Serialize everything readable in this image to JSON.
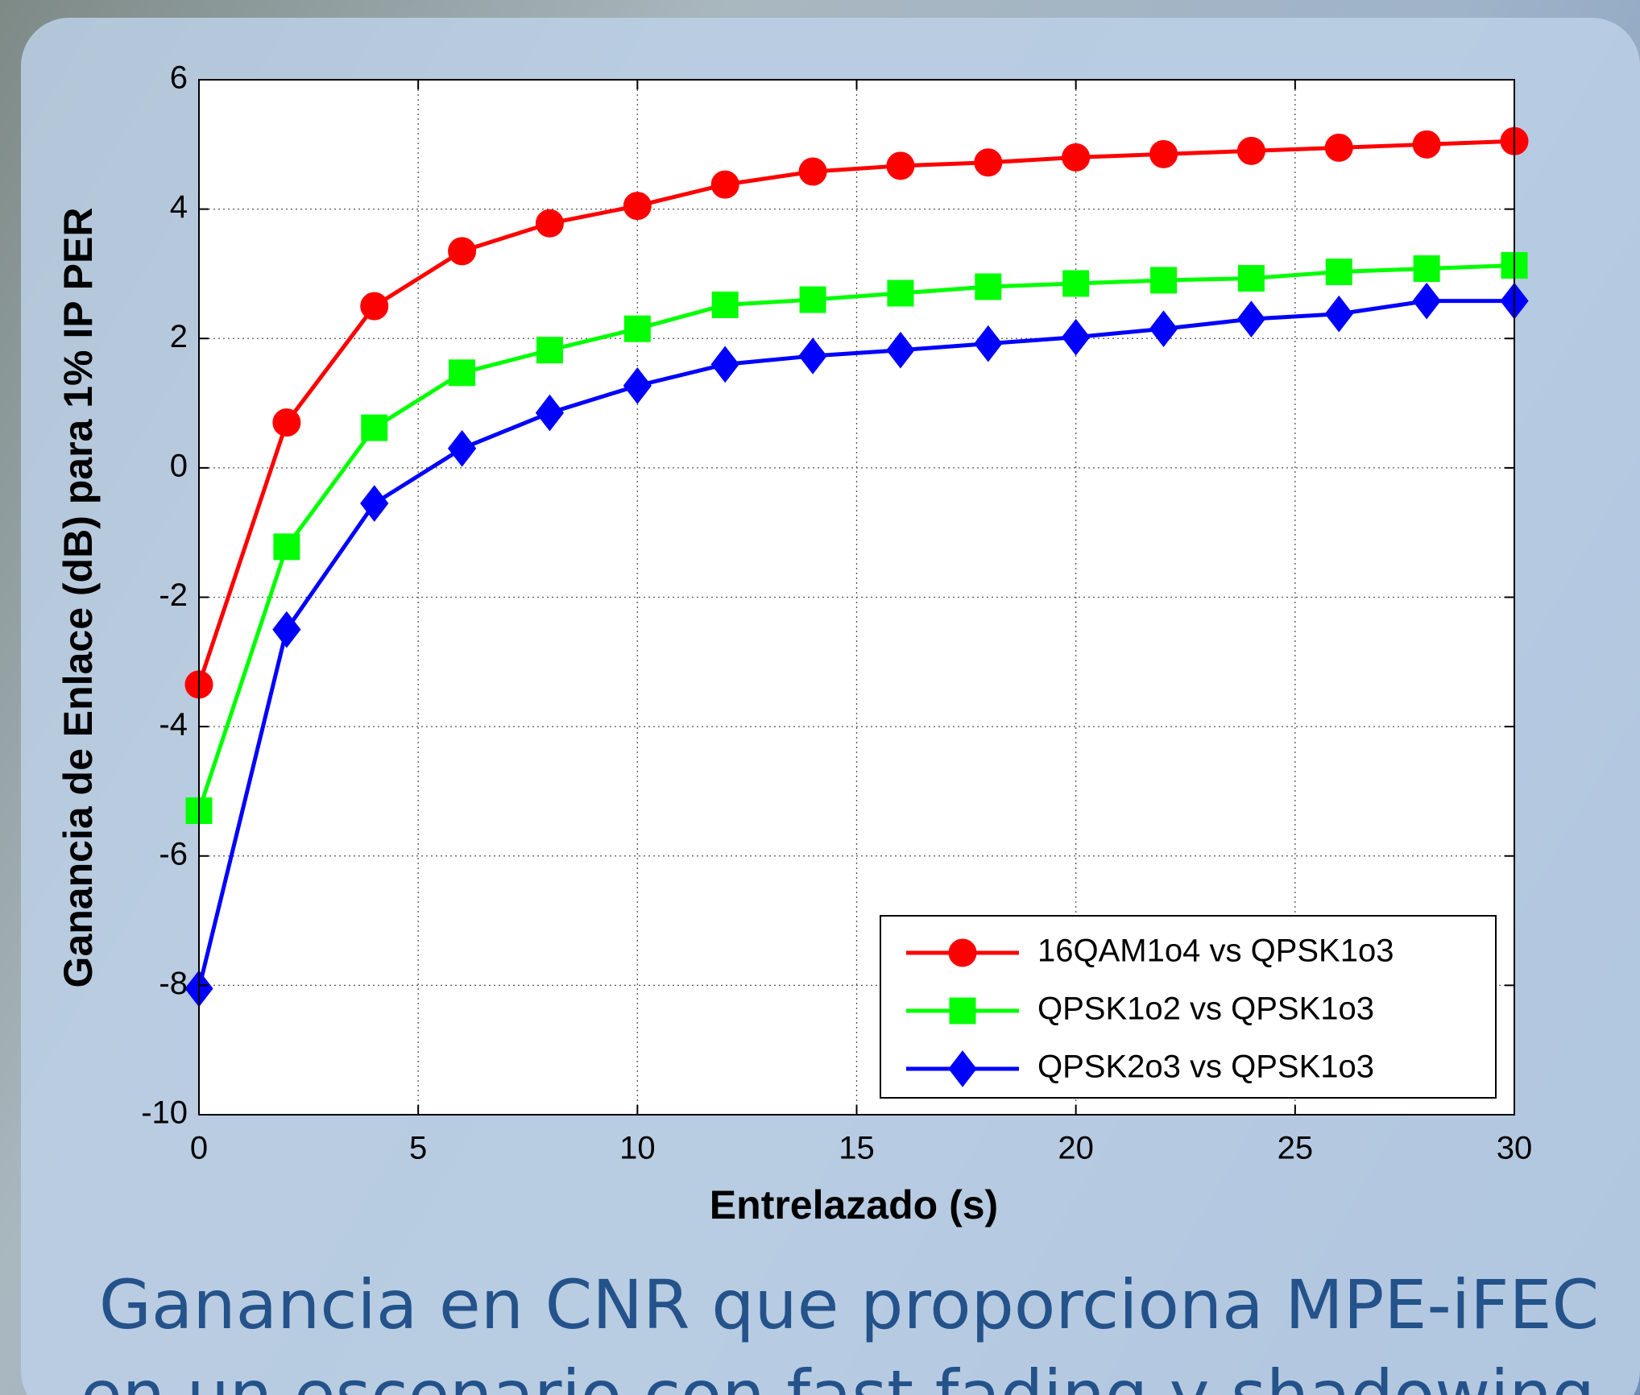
{
  "chart_data": {
    "type": "line",
    "xlabel": "Entrelazado (s)",
    "ylabel": "Ganancia de Enlace (dB) para 1% IP PER",
    "x": [
      0,
      2,
      4,
      6,
      8,
      10,
      12,
      14,
      16,
      18,
      20,
      22,
      24,
      26,
      28,
      30
    ],
    "series": [
      {
        "name": "16QAM1o4 vs QPSK1o3",
        "color": "#ff0000",
        "marker": "circle",
        "values": [
          -3.35,
          0.7,
          2.5,
          3.35,
          3.78,
          4.05,
          4.38,
          4.58,
          4.67,
          4.72,
          4.8,
          4.85,
          4.9,
          4.95,
          5.0,
          5.05
        ]
      },
      {
        "name": "QPSK1o2 vs QPSK1o3",
        "color": "#00ff00",
        "marker": "square",
        "values": [
          -5.3,
          -1.22,
          0.62,
          1.47,
          1.82,
          2.15,
          2.52,
          2.6,
          2.7,
          2.8,
          2.85,
          2.9,
          2.93,
          3.03,
          3.08,
          3.13
        ]
      },
      {
        "name": "QPSK2o3 vs QPSK1o3",
        "color": "#0000ff",
        "marker": "diamond",
        "values": [
          -8.05,
          -2.5,
          -0.55,
          0.3,
          0.85,
          1.27,
          1.6,
          1.73,
          1.82,
          1.92,
          2.02,
          2.15,
          2.3,
          2.38,
          2.58,
          2.58
        ]
      }
    ],
    "xlim": [
      0,
      30
    ],
    "xticks": [
      0,
      5,
      10,
      15,
      20,
      25,
      30
    ],
    "ylim": [
      -10,
      6
    ],
    "yticks": [
      -10,
      -8,
      -6,
      -4,
      -2,
      0,
      2,
      4,
      6
    ],
    "grid": true,
    "legend": "lower right"
  },
  "caption": [
    "Ganancia en CNR que proporciona MPE-iFEC",
    "en un escenario con fast fading y shadowing"
  ]
}
